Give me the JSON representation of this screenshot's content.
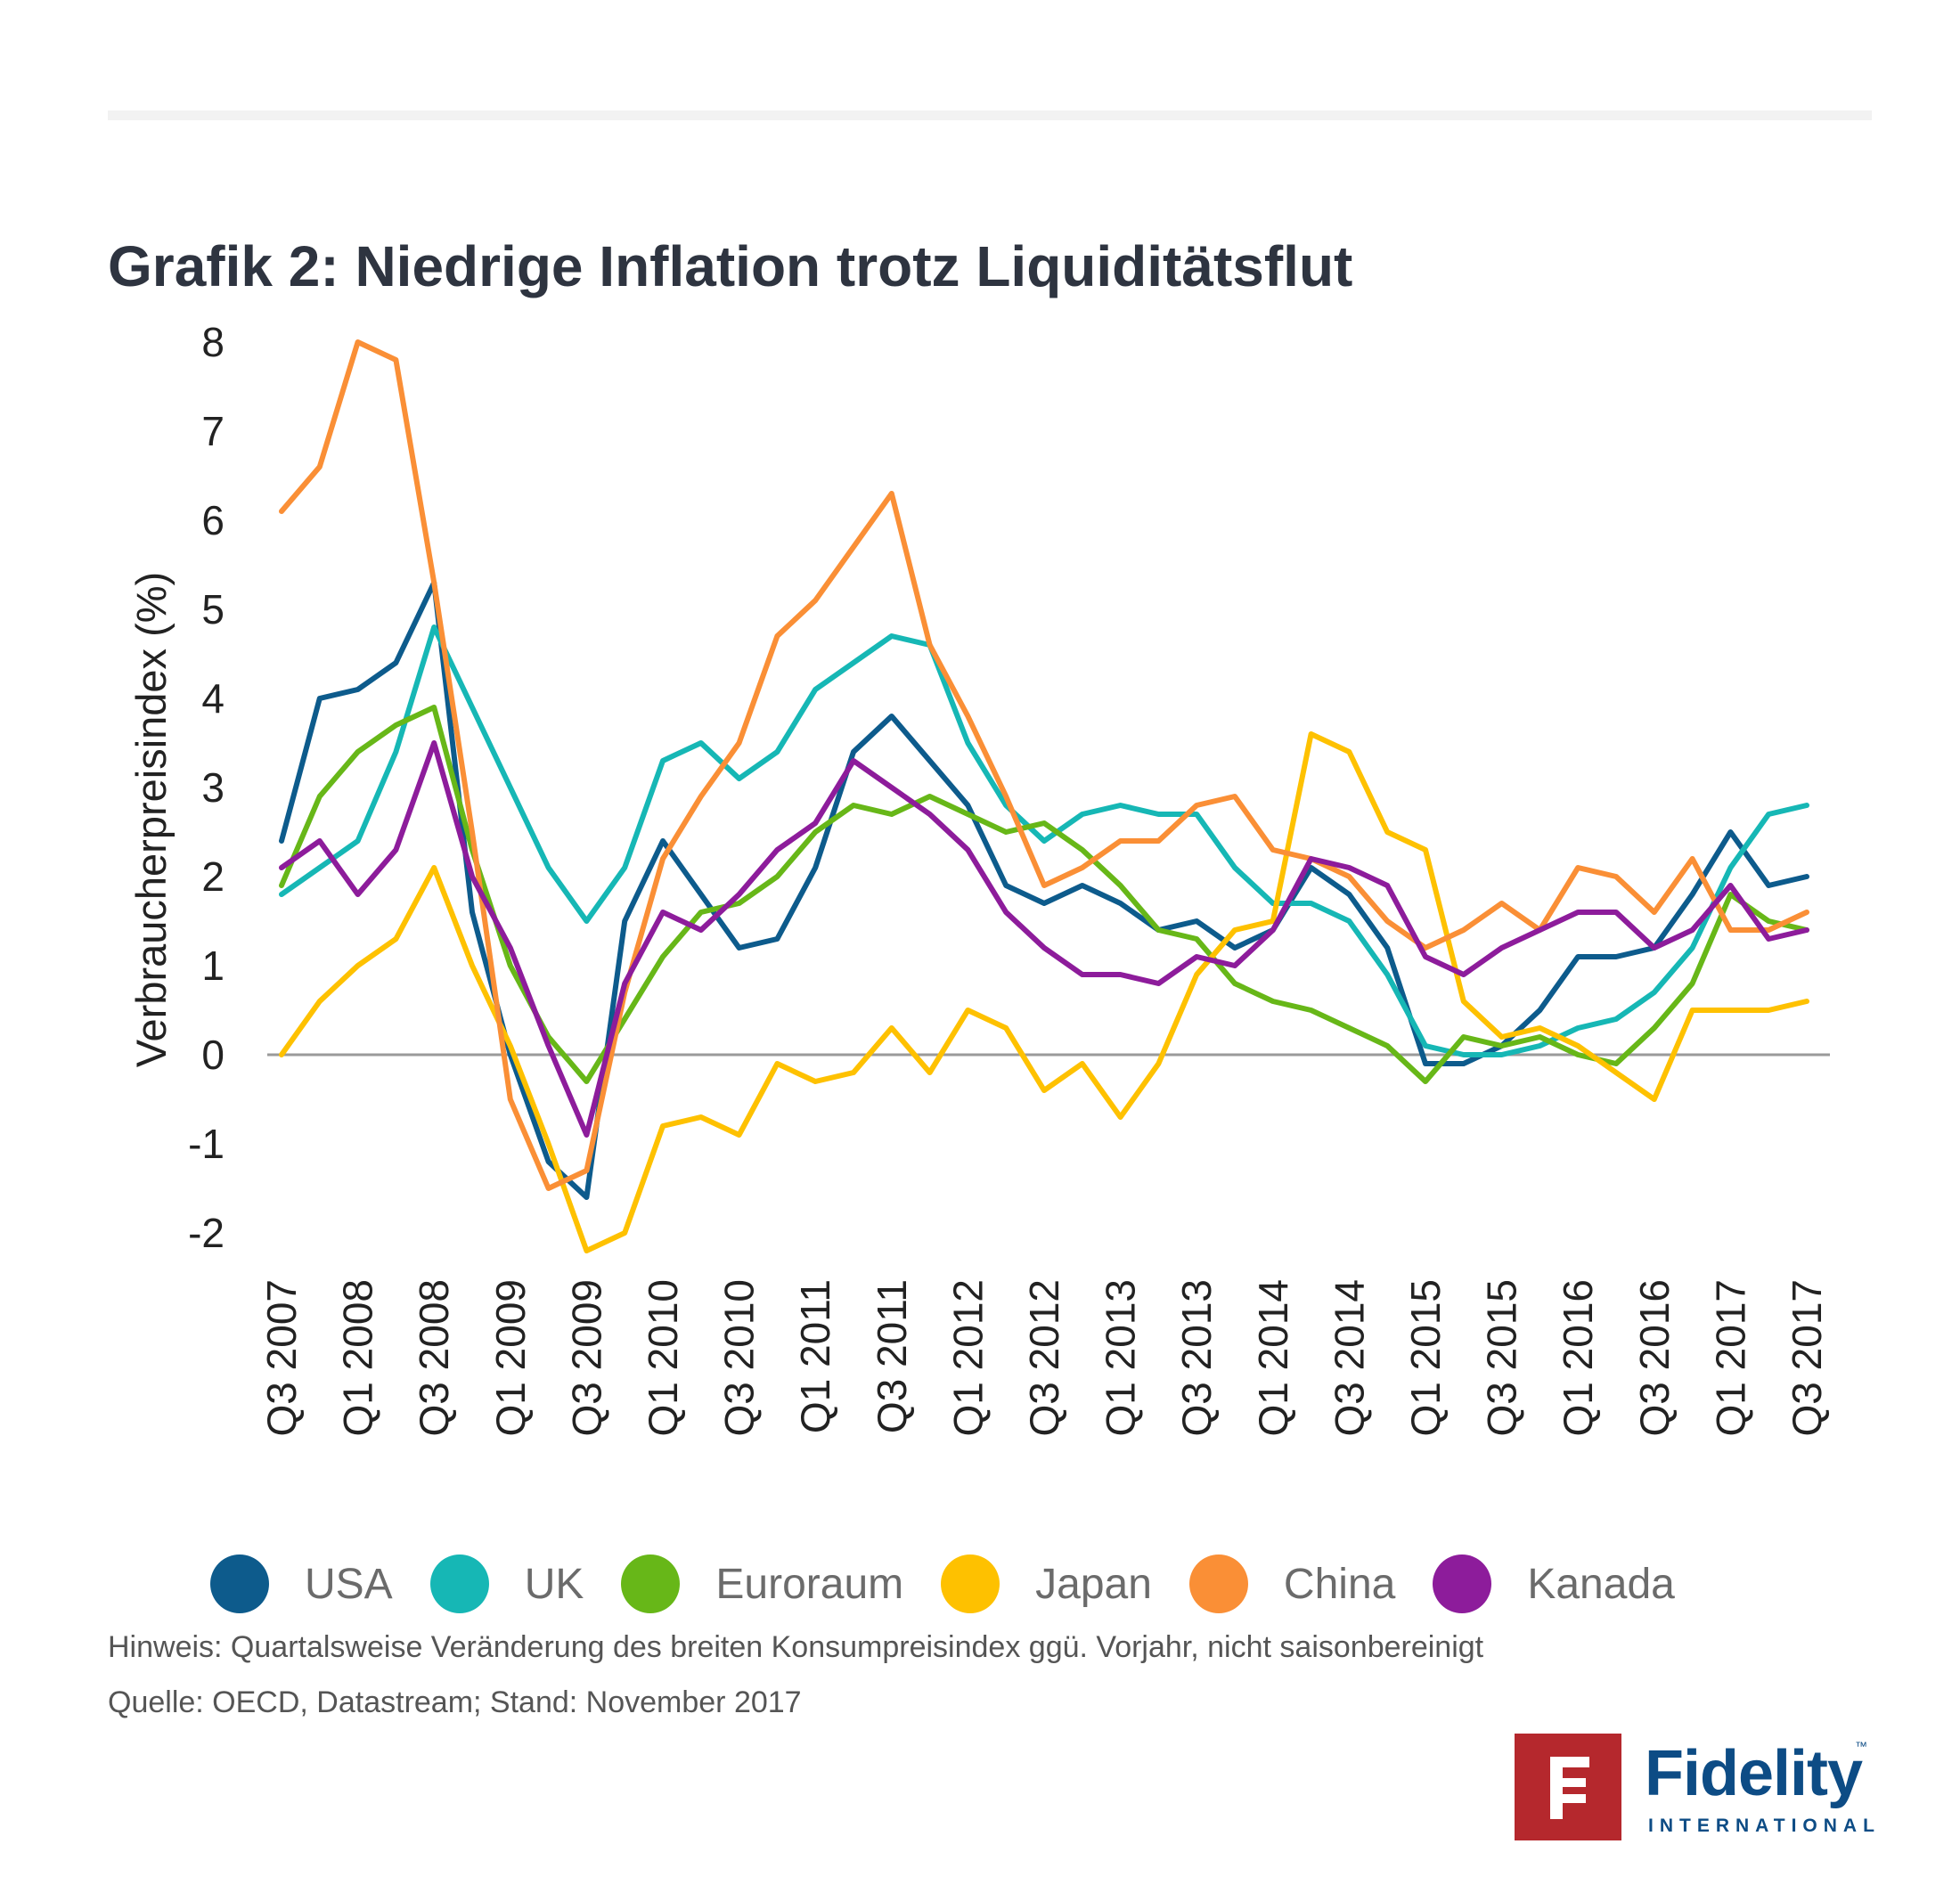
{
  "title": "Grafik 2: Niedrige Inflation trotz Liquiditätsflut",
  "note": "Hinweis: Quartalsweise Veränderung des breiten Konsumpreisindex ggü. Vorjahr, nicht saisonbereinigt",
  "source": "Quelle: OECD, Datastream; Stand: November 2017",
  "logo": {
    "name": "Fidelity",
    "sub": "INTERNATIONAL",
    "tm": "™"
  },
  "chart_data": {
    "type": "line",
    "title": "Grafik 2: Niedrige Inflation trotz Liquiditätsflut",
    "ylabel": "Verbraucherpreisindex (%)",
    "xlabel": "",
    "ylim": [
      -2,
      8
    ],
    "yticks": [
      "8",
      "7",
      "6",
      "5",
      "4",
      "3",
      "2",
      "1",
      "0",
      "-1",
      "-2"
    ],
    "ytick_values": [
      8,
      7,
      6,
      5,
      4,
      3,
      2,
      1,
      0,
      -1,
      -2
    ],
    "x": [
      "Q3 2007",
      "Q4 2007",
      "Q1 2008",
      "Q2 2008",
      "Q3 2008",
      "Q4 2008",
      "Q1 2009",
      "Q2 2009",
      "Q3 2009",
      "Q4 2009",
      "Q1 2010",
      "Q2 2010",
      "Q3 2010",
      "Q4 2010",
      "Q1 2011",
      "Q2 2011",
      "Q3 2011",
      "Q4 2011",
      "Q1 2012",
      "Q2 2012",
      "Q3 2012",
      "Q4 2012",
      "Q1 2013",
      "Q2 2013",
      "Q3 2013",
      "Q4 2013",
      "Q1 2014",
      "Q2 2014",
      "Q3 2014",
      "Q4 2014",
      "Q1 2015",
      "Q2 2015",
      "Q3 2015",
      "Q4 2015",
      "Q1 2016",
      "Q2 2016",
      "Q3 2016",
      "Q4 2016",
      "Q1 2017",
      "Q2 2017",
      "Q3 2017"
    ],
    "xtick_labels": [
      "Q3 2007",
      "Q1 2008",
      "Q3 2008",
      "Q1 2009",
      "Q3 2009",
      "Q1 2010",
      "Q3 2010",
      "Q1 2011",
      "Q3 2011",
      "Q1 2012",
      "Q3 2012",
      "Q1 2013",
      "Q3 2013",
      "Q1 2014",
      "Q3 2014",
      "Q1 2015",
      "Q3 2015",
      "Q1 2016",
      "Q3 2016",
      "Q1 2017",
      "Q3 2017"
    ],
    "grid": false,
    "legend_position": "bottom",
    "series": [
      {
        "name": "USA",
        "color": "#0d5b8c",
        "values": [
          2.4,
          4.0,
          4.1,
          4.4,
          5.3,
          1.6,
          0.0,
          -1.2,
          -1.6,
          1.5,
          2.4,
          1.8,
          1.2,
          1.3,
          2.1,
          3.4,
          3.8,
          3.3,
          2.8,
          1.9,
          1.7,
          1.9,
          1.7,
          1.4,
          1.5,
          1.2,
          1.4,
          2.1,
          1.8,
          1.2,
          -0.1,
          -0.1,
          0.1,
          0.5,
          1.1,
          1.1,
          1.2,
          1.8,
          2.5,
          1.9,
          2.0
        ]
      },
      {
        "name": "UK",
        "color": "#16b7b5",
        "values": [
          1.8,
          2.1,
          2.4,
          3.4,
          4.8,
          3.9,
          3.0,
          2.1,
          1.5,
          2.1,
          3.3,
          3.5,
          3.1,
          3.4,
          4.1,
          4.4,
          4.7,
          4.6,
          3.5,
          2.8,
          2.4,
          2.7,
          2.8,
          2.7,
          2.7,
          2.1,
          1.7,
          1.7,
          1.5,
          0.9,
          0.1,
          0.0,
          0.0,
          0.1,
          0.3,
          0.4,
          0.7,
          1.2,
          2.1,
          2.7,
          2.8
        ]
      },
      {
        "name": "Euroraum",
        "color": "#67b718",
        "values": [
          1.9,
          2.9,
          3.4,
          3.7,
          3.9,
          2.3,
          1.0,
          0.2,
          -0.3,
          0.4,
          1.1,
          1.6,
          1.7,
          2.0,
          2.5,
          2.8,
          2.7,
          2.9,
          2.7,
          2.5,
          2.6,
          2.3,
          1.9,
          1.4,
          1.3,
          0.8,
          0.6,
          0.5,
          0.3,
          0.1,
          -0.3,
          0.2,
          0.1,
          0.2,
          0.0,
          -0.1,
          0.3,
          0.8,
          1.8,
          1.5,
          1.4
        ]
      },
      {
        "name": "Japan",
        "color": "#fec100",
        "values": [
          0.0,
          0.6,
          1.0,
          1.3,
          2.1,
          1.0,
          0.1,
          -1.0,
          -2.2,
          -2.0,
          -0.8,
          -0.7,
          -0.9,
          -0.1,
          -0.3,
          -0.2,
          0.3,
          -0.2,
          0.5,
          0.3,
          -0.4,
          -0.1,
          -0.7,
          -0.1,
          0.9,
          1.4,
          1.5,
          3.6,
          3.4,
          2.5,
          2.3,
          0.6,
          0.2,
          0.3,
          0.1,
          -0.2,
          -0.5,
          0.5,
          0.5,
          0.5,
          0.6
        ]
      },
      {
        "name": "China",
        "color": "#fa8f36",
        "values": [
          6.1,
          6.6,
          8.0,
          7.8,
          5.3,
          2.5,
          -0.5,
          -1.5,
          -1.3,
          0.7,
          2.2,
          2.9,
          3.5,
          4.7,
          5.1,
          5.7,
          6.3,
          4.6,
          3.8,
          2.9,
          1.9,
          2.1,
          2.4,
          2.4,
          2.8,
          2.9,
          2.3,
          2.2,
          2.0,
          1.5,
          1.2,
          1.4,
          1.7,
          1.4,
          2.1,
          2.0,
          1.6,
          2.2,
          1.4,
          1.4,
          1.6
        ]
      },
      {
        "name": "Kanada",
        "color": "#8d1c9b",
        "values": [
          2.1,
          2.4,
          1.8,
          2.3,
          3.5,
          2.0,
          1.2,
          0.1,
          -0.9,
          0.8,
          1.6,
          1.4,
          1.8,
          2.3,
          2.6,
          3.3,
          3.0,
          2.7,
          2.3,
          1.6,
          1.2,
          0.9,
          0.9,
          0.8,
          1.1,
          1.0,
          1.4,
          2.2,
          2.1,
          1.9,
          1.1,
          0.9,
          1.2,
          1.4,
          1.6,
          1.6,
          1.2,
          1.4,
          1.9,
          1.3,
          1.4
        ]
      }
    ]
  }
}
